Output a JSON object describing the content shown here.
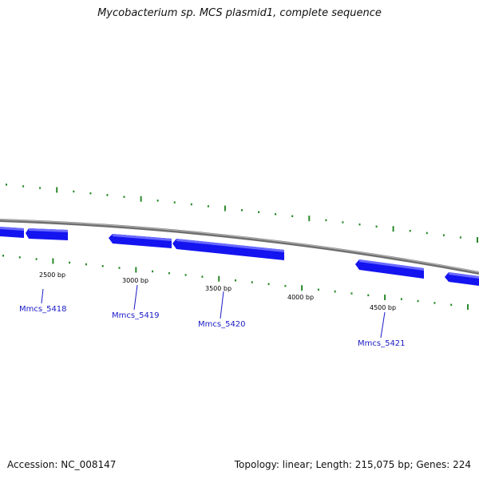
{
  "title": "Mycobacterium sp. MCS plasmid1, complete sequence",
  "footer": {
    "accession": "Accession: NC_008147",
    "summary": "Topology: linear; Length: 215,075 bp; Genes: 224"
  },
  "colors": {
    "backbone": "#8c8c8c",
    "gene": "#1414f0",
    "tick": "#2a8a2a",
    "gene_label": "#1a1ac8"
  },
  "ticks": [
    {
      "label": "2500 bp"
    },
    {
      "label": "3000 bp"
    },
    {
      "label": "3500 bp"
    },
    {
      "label": "4000 bp"
    },
    {
      "label": "4500 bp"
    }
  ],
  "gene_labels": [
    {
      "label": "Mmcs_5418"
    },
    {
      "label": "Mmcs_5419"
    },
    {
      "label": "Mmcs_5420"
    },
    {
      "label": "Mmcs_5421"
    }
  ]
}
